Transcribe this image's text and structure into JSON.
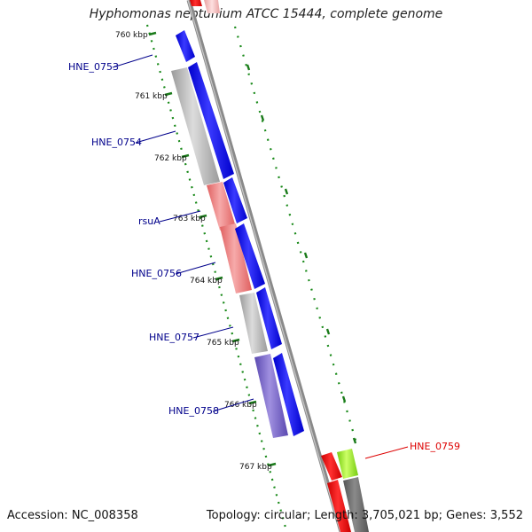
{
  "title": "Hyphomonas neptunium ATCC 15444, complete genome",
  "accession": "Accession: NC_008358",
  "summary": "Topology: circular; Length: 3,705,021 bp; Genes: 3,552",
  "colors": {
    "backbone": "#888888",
    "forward_cds": "#0000ff",
    "gc_dots": "#1a7a1a",
    "gene_label": "#00008b",
    "highlight_label": "#dd0000"
  },
  "ticks": [
    "760 kbp",
    "761 kbp",
    "762 kbp",
    "763 kbp",
    "764 kbp",
    "765 kbp",
    "766 kbp",
    "767 kbp"
  ],
  "genes": [
    {
      "name": "HNE_0753",
      "color": "#00008b",
      "fill": "#b8b8b8"
    },
    {
      "name": "HNE_0754",
      "color": "#00008b",
      "fill": "#b8b8b8"
    },
    {
      "name": "rsuA",
      "color": "#00008b",
      "fill": "#ee8080"
    },
    {
      "name": "HNE_0756",
      "color": "#00008b",
      "fill": "#ee8080"
    },
    {
      "name": "HNE_0757",
      "color": "#00008b",
      "fill": "#b8b8b8"
    },
    {
      "name": "HNE_0758",
      "color": "#00008b",
      "fill": "#7a6acc"
    },
    {
      "name": "HNE_0759",
      "color": "#dd0000",
      "fill": "#99ee33"
    }
  ]
}
